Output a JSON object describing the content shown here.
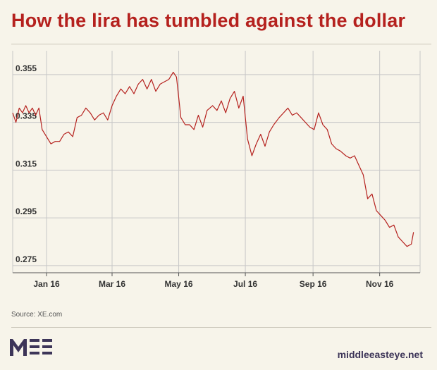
{
  "header": {
    "title": "How the lira has tumbled against the dollar"
  },
  "footer": {
    "source": "Source: XE.com",
    "site": "middleeasteye.net",
    "logo_text": "MEE"
  },
  "colors": {
    "title": "#b5211e",
    "line": "#b5211e",
    "grid": "#c7c7c7",
    "background": "#f7f4ea",
    "logo": "#3d3558"
  },
  "chart_data": {
    "type": "line",
    "title": "",
    "xlabel": "",
    "ylabel": "",
    "ylim": [
      0.272,
      0.365
    ],
    "xlim": [
      "2015-12-01",
      "2016-12-08"
    ],
    "yticks": [
      0.275,
      0.295,
      0.315,
      0.335,
      0.355
    ],
    "ytick_labels": [
      "0.275",
      "0.295",
      "0.315",
      "0.335",
      "0.355"
    ],
    "xticks": [
      "2016-01-01",
      "2016-03-01",
      "2016-05-01",
      "2016-07-01",
      "2016-09-01",
      "2016-11-01"
    ],
    "xtick_labels": [
      "Jan 16",
      "Mar 16",
      "May 16",
      "Jul 16",
      "Sep 16",
      "Nov 16"
    ],
    "grid": true,
    "legend": "none",
    "series": [
      {
        "x": [
          "2015-12-01",
          "2015-12-04",
          "2015-12-07",
          "2015-12-10",
          "2015-12-13",
          "2015-12-16",
          "2015-12-19",
          "2015-12-22",
          "2015-12-25",
          "2015-12-28",
          "2016-01-01",
          "2016-01-05",
          "2016-01-09",
          "2016-01-13",
          "2016-01-17",
          "2016-01-21",
          "2016-01-25",
          "2016-01-29",
          "2016-02-02",
          "2016-02-06",
          "2016-02-10",
          "2016-02-14",
          "2016-02-18",
          "2016-02-22",
          "2016-02-26",
          "2016-03-01",
          "2016-03-05",
          "2016-03-09",
          "2016-03-13",
          "2016-03-17",
          "2016-03-21",
          "2016-03-25",
          "2016-03-29",
          "2016-04-02",
          "2016-04-06",
          "2016-04-10",
          "2016-04-14",
          "2016-04-18",
          "2016-04-22",
          "2016-04-26",
          "2016-04-29",
          "2016-05-03",
          "2016-05-07",
          "2016-05-11",
          "2016-05-15",
          "2016-05-19",
          "2016-05-23",
          "2016-05-27",
          "2016-06-01",
          "2016-06-05",
          "2016-06-09",
          "2016-06-13",
          "2016-06-17",
          "2016-06-21",
          "2016-06-25",
          "2016-06-29",
          "2016-07-03",
          "2016-07-07",
          "2016-07-11",
          "2016-07-15",
          "2016-07-19",
          "2016-07-23",
          "2016-07-27",
          "2016-08-01",
          "2016-08-05",
          "2016-08-09",
          "2016-08-13",
          "2016-08-17",
          "2016-08-21",
          "2016-08-25",
          "2016-08-29",
          "2016-09-02",
          "2016-09-06",
          "2016-09-10",
          "2016-09-14",
          "2016-09-18",
          "2016-09-22",
          "2016-09-26",
          "2016-10-01",
          "2016-10-05",
          "2016-10-09",
          "2016-10-13",
          "2016-10-17",
          "2016-10-21",
          "2016-10-25",
          "2016-10-29",
          "2016-11-02",
          "2016-11-06",
          "2016-11-10",
          "2016-11-14",
          "2016-11-18",
          "2016-11-22",
          "2016-11-26",
          "2016-11-30",
          "2016-12-02"
        ],
        "values": [
          0.339,
          0.335,
          0.341,
          0.339,
          0.342,
          0.339,
          0.341,
          0.338,
          0.341,
          0.332,
          0.329,
          0.326,
          0.327,
          0.327,
          0.33,
          0.331,
          0.329,
          0.337,
          0.338,
          0.341,
          0.339,
          0.336,
          0.338,
          0.339,
          0.336,
          0.342,
          0.346,
          0.349,
          0.347,
          0.35,
          0.347,
          0.351,
          0.353,
          0.349,
          0.353,
          0.348,
          0.351,
          0.352,
          0.353,
          0.356,
          0.354,
          0.337,
          0.334,
          0.334,
          0.332,
          0.338,
          0.333,
          0.34,
          0.342,
          0.34,
          0.344,
          0.339,
          0.345,
          0.348,
          0.341,
          0.346,
          0.328,
          0.321,
          0.326,
          0.33,
          0.325,
          0.331,
          0.334,
          0.337,
          0.339,
          0.341,
          0.338,
          0.339,
          0.337,
          0.335,
          0.333,
          0.332,
          0.339,
          0.334,
          0.332,
          0.326,
          0.324,
          0.323,
          0.321,
          0.32,
          0.321,
          0.317,
          0.313,
          0.303,
          0.305,
          0.298,
          0.296,
          0.294,
          0.291,
          0.292,
          0.287,
          0.285,
          0.283,
          0.284,
          0.289
        ]
      }
    ]
  }
}
